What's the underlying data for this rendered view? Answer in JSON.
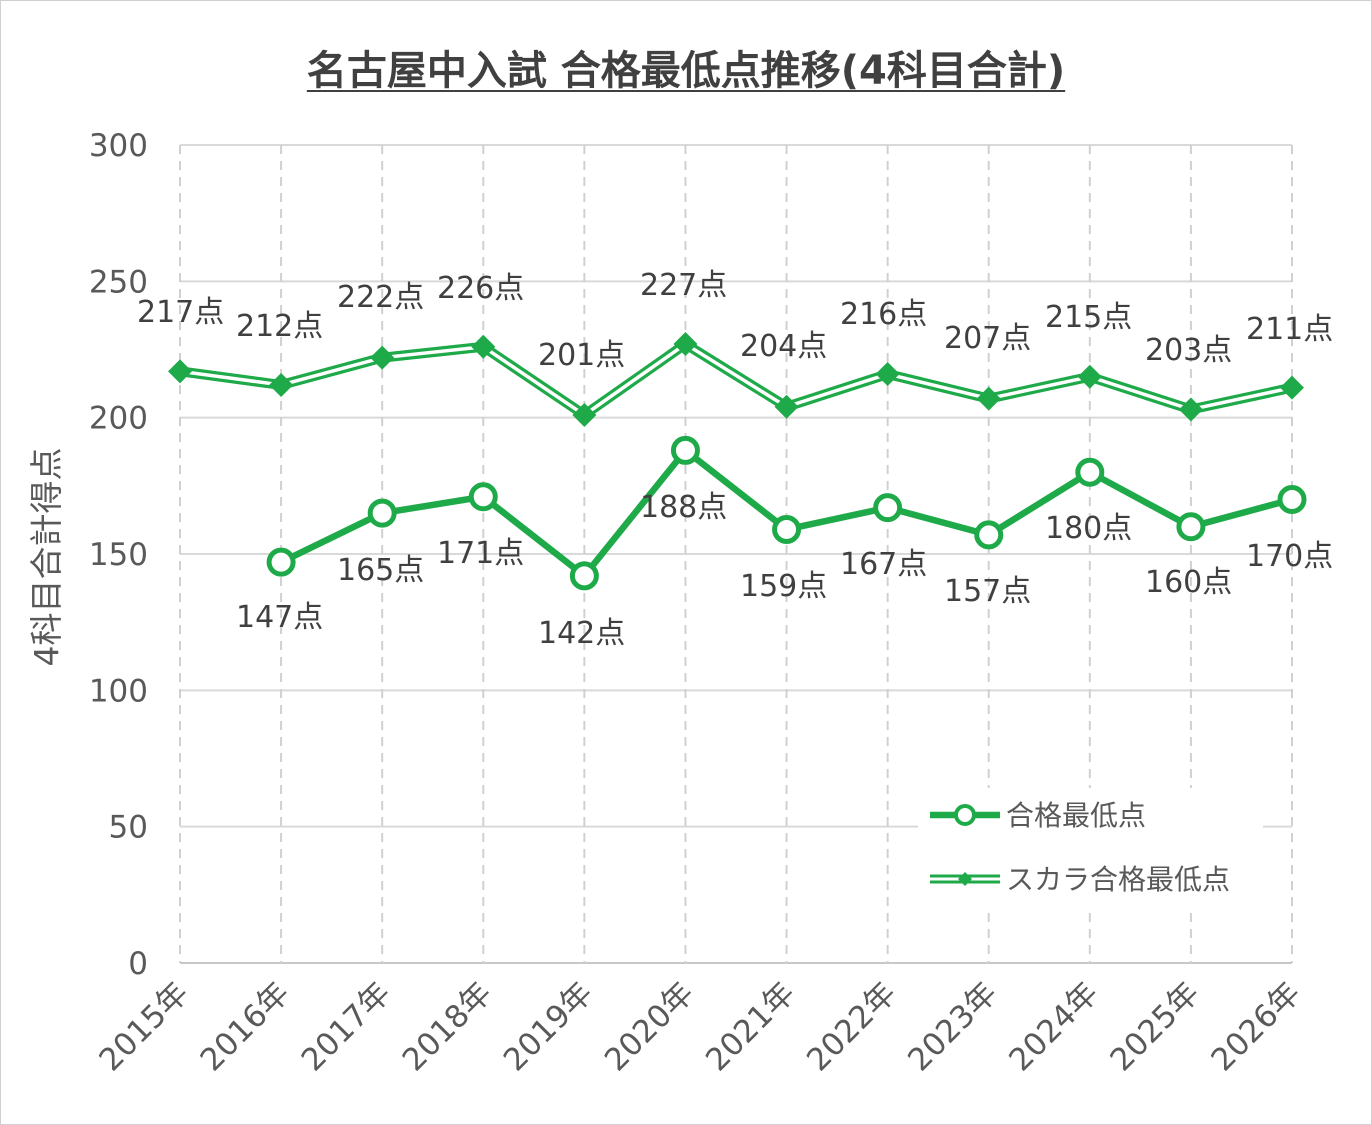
{
  "title": "名古屋中入試 合格最低点推移(4科目合計)",
  "chart_data": {
    "type": "line",
    "title": "名古屋中入試 合格最低点推移(4科目合計)",
    "ylabel": "4科目合計得点",
    "xlabel": "",
    "ylim": [
      0,
      300
    ],
    "yticks": [
      "0",
      "50",
      "100",
      "150",
      "200",
      "250",
      "300"
    ],
    "categories": [
      "2015年",
      "2016年",
      "2017年",
      "2018年",
      "2019年",
      "2020年",
      "2021年",
      "2022年",
      "2023年",
      "2024年",
      "2025年",
      "2026年"
    ],
    "grid": true,
    "legend_position": "bottom-right",
    "series": [
      {
        "name": "合格最低点",
        "values": [
          null,
          147,
          165,
          171,
          142,
          188,
          159,
          167,
          157,
          180,
          160,
          170
        ],
        "labels": [
          "",
          "147点",
          "165点",
          "171点",
          "142点",
          "188点",
          "159点",
          "167点",
          "157点",
          "180点",
          "160点",
          "170点"
        ],
        "color": "#1faa4a",
        "marker": "circle"
      },
      {
        "name": "スカラ合格最低点",
        "values": [
          217,
          212,
          222,
          226,
          201,
          227,
          204,
          216,
          207,
          215,
          203,
          211
        ],
        "labels": [
          "217点",
          "212点",
          "222点",
          "226点",
          "201点",
          "227点",
          "204点",
          "216点",
          "207点",
          "215点",
          "203点",
          "211点"
        ],
        "color": "#1faa4a",
        "marker": "diamond"
      }
    ]
  }
}
